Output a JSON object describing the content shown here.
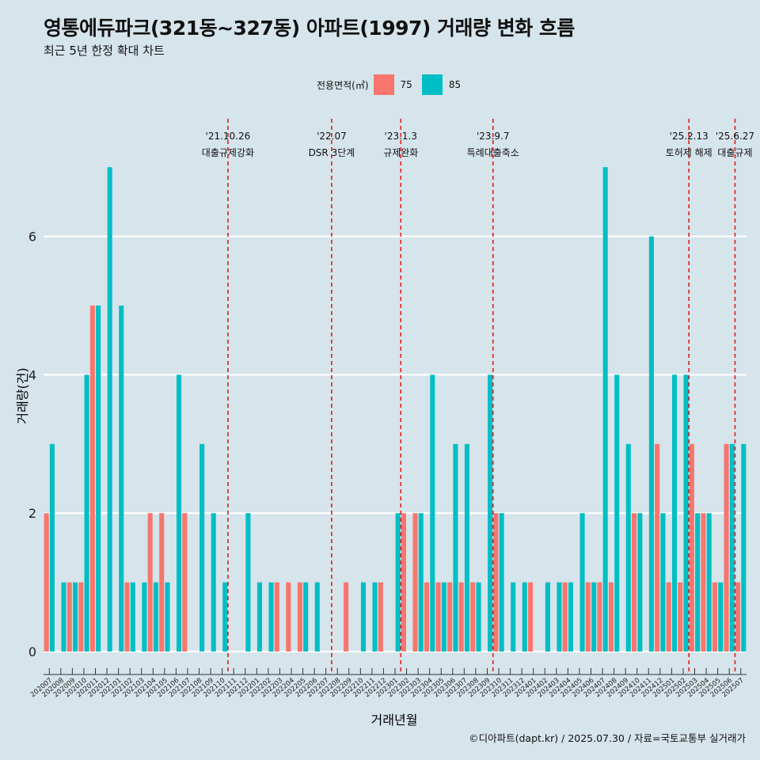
{
  "title": "영통에듀파크(321동~327동) 아파트(1997) 거래량 변화 흐름",
  "subtitle": "최근 5년 한정 확대 차트",
  "caption": "©디아파트(dapt.kr) / 2025.07.30 / 자료=국토교통부 실거래가",
  "legend": {
    "title": "전용면적(㎡)",
    "items": [
      {
        "label": "75",
        "color": "#f8766d"
      },
      {
        "label": "85",
        "color": "#00bfc4"
      }
    ]
  },
  "chart_data": {
    "type": "bar",
    "xlabel": "거래년월",
    "ylabel": "거래량(건)",
    "ylim": [
      0,
      7
    ],
    "yticks": [
      0,
      2,
      4,
      6
    ],
    "grid": true,
    "legend_position": "top",
    "categories": [
      "202007",
      "202008",
      "202009",
      "202010",
      "202011",
      "202012",
      "202101",
      "202102",
      "202103",
      "202104",
      "202105",
      "202106",
      "202107",
      "202108",
      "202109",
      "202110",
      "202111",
      "202112",
      "202201",
      "202202",
      "202203",
      "202204",
      "202205",
      "202206",
      "202207",
      "202208",
      "202209",
      "202210",
      "202211",
      "202212",
      "202301",
      "202302",
      "202303",
      "202304",
      "202305",
      "202306",
      "202307",
      "202308",
      "202309",
      "202310",
      "202311",
      "202312",
      "202401",
      "202402",
      "202403",
      "202404",
      "202405",
      "202406",
      "202407",
      "202408",
      "202409",
      "202410",
      "202411",
      "202412",
      "202501",
      "202502",
      "202503",
      "202504",
      "202505",
      "202506",
      "202507"
    ],
    "series": [
      {
        "name": "75",
        "color": "#f8766d",
        "values": [
          2,
          0,
          1,
          1,
          5,
          0,
          0,
          1,
          0,
          2,
          2,
          0,
          2,
          0,
          0,
          0,
          0,
          0,
          0,
          0,
          1,
          1,
          1,
          0,
          0,
          0,
          1,
          0,
          0,
          1,
          0,
          2,
          2,
          1,
          1,
          1,
          1,
          1,
          0,
          2,
          0,
          0,
          1,
          0,
          0,
          1,
          0,
          1,
          1,
          1,
          0,
          2,
          0,
          3,
          1,
          1,
          3,
          2,
          1,
          3,
          1
        ]
      },
      {
        "name": "85",
        "color": "#00bfc4",
        "values": [
          3,
          1,
          1,
          4,
          5,
          7,
          5,
          1,
          1,
          1,
          1,
          4,
          0,
          3,
          2,
          1,
          0,
          2,
          1,
          1,
          0,
          0,
          1,
          1,
          0,
          0,
          0,
          1,
          1,
          0,
          2,
          0,
          2,
          4,
          1,
          3,
          3,
          1,
          4,
          2,
          1,
          1,
          0,
          1,
          1,
          1,
          2,
          1,
          7,
          4,
          3,
          2,
          6,
          2,
          4,
          4,
          2,
          2,
          1,
          3,
          3
        ]
      }
    ],
    "events": [
      {
        "date": "'21.10.26",
        "label": "대출규제강화",
        "after": "202110"
      },
      {
        "date": "'22.07",
        "label": "DSR 3단계",
        "after": "202207"
      },
      {
        "date": "'23.1.3",
        "label": "규제완화",
        "after": "202301"
      },
      {
        "date": "'23.9.7",
        "label": "특례대출축소",
        "after": "202309"
      },
      {
        "date": "'25.2.13",
        "label": "토허제 해제",
        "after": "202502"
      },
      {
        "date": "'25.6.27",
        "label": "대출규제",
        "after": "202506"
      }
    ]
  }
}
